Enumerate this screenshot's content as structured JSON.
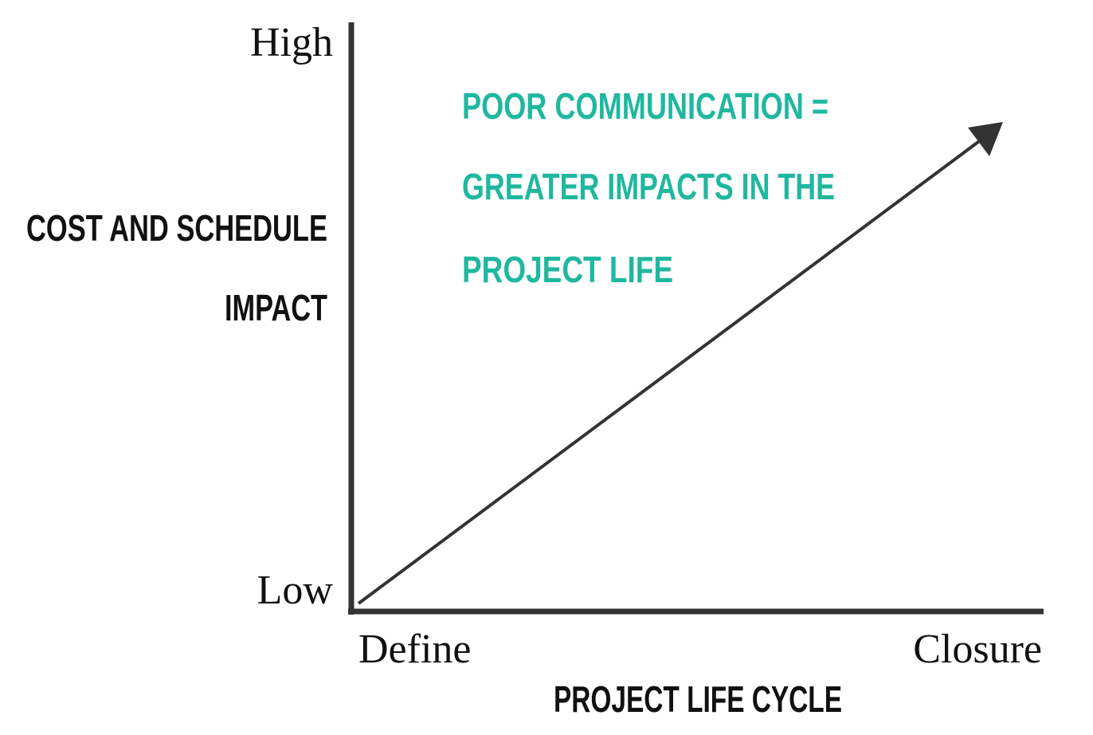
{
  "y_axis": {
    "title": [
      "COST AND SCHEDULE",
      "IMPACT"
    ],
    "high": "High",
    "low": "Low"
  },
  "x_axis": {
    "title": "PROJECT LIFE CYCLE",
    "start": "Define",
    "end": "Closure"
  },
  "annotation": [
    "POOR COMMUNICATION =",
    "GREATER IMPACTS IN THE",
    "PROJECT LIFE"
  ]
}
